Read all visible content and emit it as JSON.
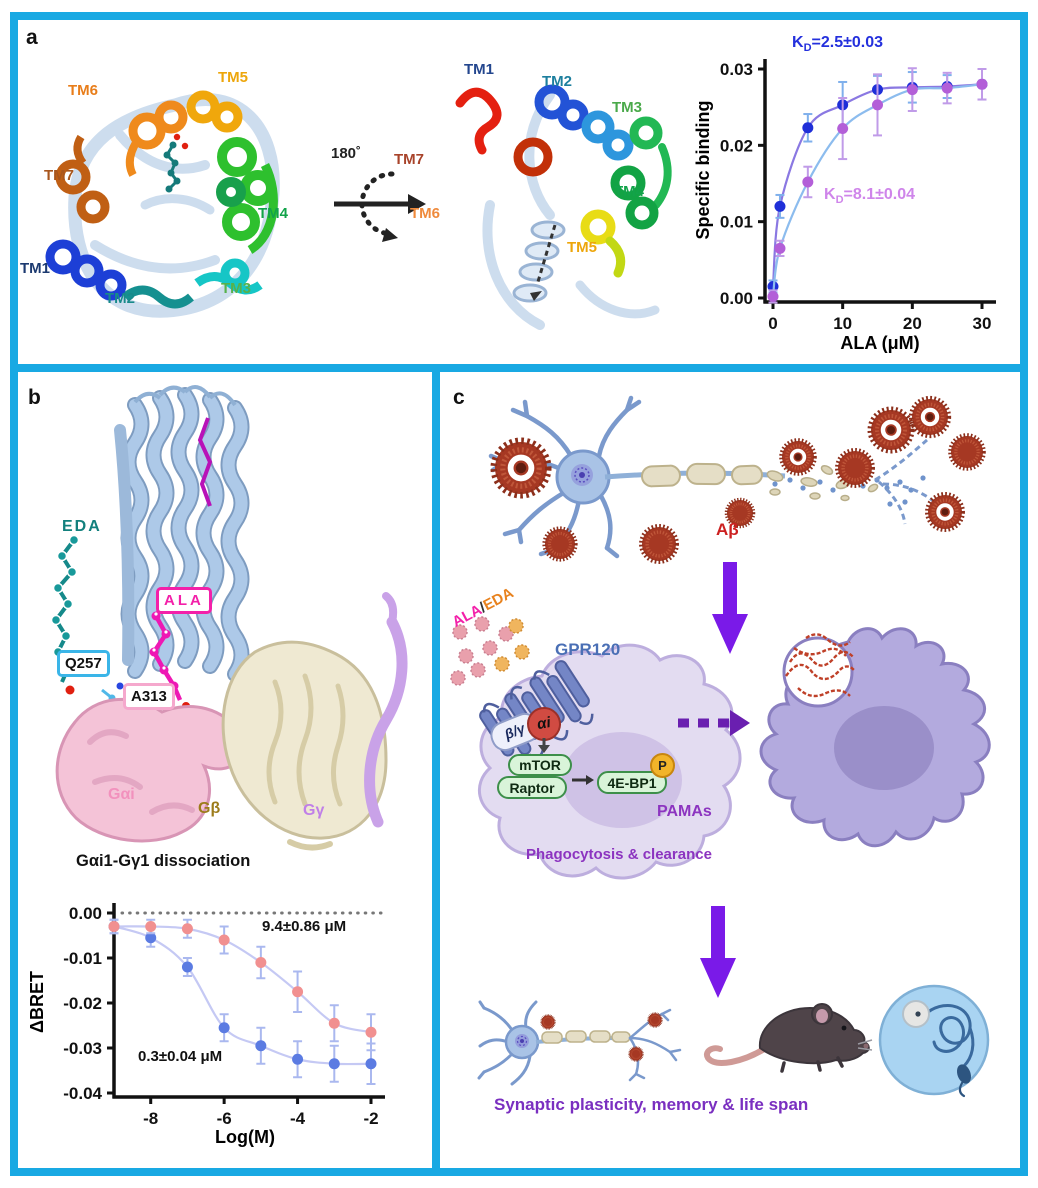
{
  "figure": {
    "border_color": "#19a9e3",
    "background": "#ffffff",
    "panel_labels": {
      "a": "a",
      "b": "b",
      "c": "c"
    }
  },
  "panel_a": {
    "rotation_label": "180˚",
    "tm_left": [
      {
        "text": "TM1",
        "color": "#1c3a70"
      },
      {
        "text": "TM2",
        "color": "#178a8a"
      },
      {
        "text": "TM3",
        "color": "#57b14b"
      },
      {
        "text": "TM4",
        "color": "#12a34a"
      },
      {
        "text": "TM5",
        "color": "#eda60b"
      },
      {
        "text": "TM6",
        "color": "#e87d1a"
      },
      {
        "text": "TM7",
        "color": "#a8561d"
      }
    ],
    "tm_mid": [
      {
        "text": "TM1",
        "color": "#23468e"
      },
      {
        "text": "TM2",
        "color": "#1d7f9e"
      },
      {
        "text": "TM3",
        "color": "#4aa94a"
      },
      {
        "text": "TM4",
        "color": "#12a34a"
      },
      {
        "text": "TM5",
        "color": "#eda60b"
      },
      {
        "text": "TM6",
        "color": "#ef8a3c"
      },
      {
        "text": "TM7",
        "color": "#a8432a"
      }
    ]
  },
  "panel_b": {
    "eda_label": "EDA",
    "ala_label": "ALA",
    "q257_label": "Q257",
    "a313_label": "A313",
    "gai_label": "Gαi",
    "gb_label": "Gβ",
    "gg_label": "Gγ"
  },
  "panel_c": {
    "abeta_label": "Aβ",
    "ala": "ALA",
    "slash": "/",
    "eda": "EDA",
    "gpr120_label": "GPR120",
    "bg_label": "β/γ",
    "ai_label": "αi",
    "mtor_label": "mTOR",
    "raptor_label": "Raptor",
    "ebp1_label": "4E-BP1",
    "p_label": "P",
    "pamas_label": "PAMAs",
    "phagocytosis_label": "Phagocytosis & clearance",
    "synaptic_label": "Synaptic plasticity, memory & life span"
  },
  "chart_data": [
    {
      "type": "scatter",
      "title": "",
      "xlabel": "ALA (μM)",
      "ylabel": "Specific binding",
      "xlim": [
        0,
        30
      ],
      "ylim": [
        0,
        0.03
      ],
      "xticks": [
        0,
        10,
        20,
        30
      ],
      "xtick_labels": [
        "0",
        "10",
        "20",
        "30"
      ],
      "yticks": [
        0,
        0.01,
        0.02,
        0.03
      ],
      "ytick_labels": [
        "0.00",
        "0.01",
        "0.02",
        "0.03"
      ],
      "x": [
        0,
        1,
        5,
        10,
        15,
        20,
        25,
        30
      ],
      "grid": false,
      "legend_position": "none",
      "series": [
        {
          "name": "KD=2.5±0.03",
          "point_color": "#1f2fd8",
          "curve_color": "#8a78e2",
          "err_color": "#7fb0ec",
          "values": [
            0.0015,
            0.012,
            0.0223,
            0.0253,
            0.0273,
            0.0276,
            0.0277,
            0.028
          ],
          "errors": [
            0.0008,
            0.0015,
            0.0018,
            0.003,
            0.0018,
            0.002,
            0.0015,
            0.002
          ]
        },
        {
          "name": "KD=8.1±0.04",
          "point_color": "#b35fd8",
          "curve_color": "#8cbcee",
          "err_color": "#c09be8",
          "values": [
            0.0002,
            0.0065,
            0.0152,
            0.0222,
            0.0253,
            0.0273,
            0.0275,
            0.028
          ],
          "errors": [
            0.0008,
            0.001,
            0.002,
            0.004,
            0.004,
            0.0028,
            0.002,
            0.002
          ]
        }
      ],
      "annotations": [
        {
          "pre": "K",
          "sub": "D",
          "post": "=2.5±0.03",
          "color": "#2430dd"
        },
        {
          "pre": "K",
          "sub": "D",
          "post": "=8.1±0.04",
          "color": "#cf85ea"
        }
      ]
    },
    {
      "type": "scatter",
      "title": "Gαi1-Gγ1 dissociation",
      "xlabel": "Log(M)",
      "ylabel": "ΔBRET",
      "xlim": [
        -9,
        -2
      ],
      "ylim": [
        -0.04,
        0
      ],
      "xticks": [
        -8,
        -6,
        -4,
        -2
      ],
      "xtick_labels": [
        "-8",
        "-6",
        "-4",
        "-2"
      ],
      "yticks": [
        0,
        -0.01,
        -0.02,
        -0.03,
        -0.04
      ],
      "ytick_labels": [
        "0.00",
        "-0.01",
        "-0.02",
        "-0.03",
        "-0.04"
      ],
      "x": [
        -9,
        -8,
        -7,
        -6,
        -5,
        -4,
        -3,
        -2
      ],
      "zero_line": true,
      "grid": false,
      "legend_position": "none",
      "series": [
        {
          "name": "0.3±0.04 μM",
          "point_color": "#5b7be2",
          "curve_color": "#c5c9f4",
          "err_color": "#aab8ef",
          "values": [
            -0.003,
            -0.0055,
            -0.012,
            -0.0255,
            -0.0295,
            -0.0325,
            -0.0335,
            -0.0335
          ],
          "errors": [
            0.0015,
            0.002,
            0.002,
            0.003,
            0.004,
            0.004,
            0.004,
            0.0045
          ]
        },
        {
          "name": "9.4±0.86 μM",
          "point_color": "#f19090",
          "curve_color": "#c5c9f4",
          "err_color": "#aab8ef",
          "values": [
            -0.003,
            -0.003,
            -0.0035,
            -0.006,
            -0.011,
            -0.0175,
            -0.0245,
            -0.0265
          ],
          "errors": [
            0.0015,
            0.0015,
            0.002,
            0.003,
            0.0035,
            0.0045,
            0.004,
            0.004
          ]
        }
      ],
      "annotations": [
        {
          "text": "9.4±0.86 μM"
        },
        {
          "text": "0.3±0.04 μM"
        }
      ]
    }
  ]
}
